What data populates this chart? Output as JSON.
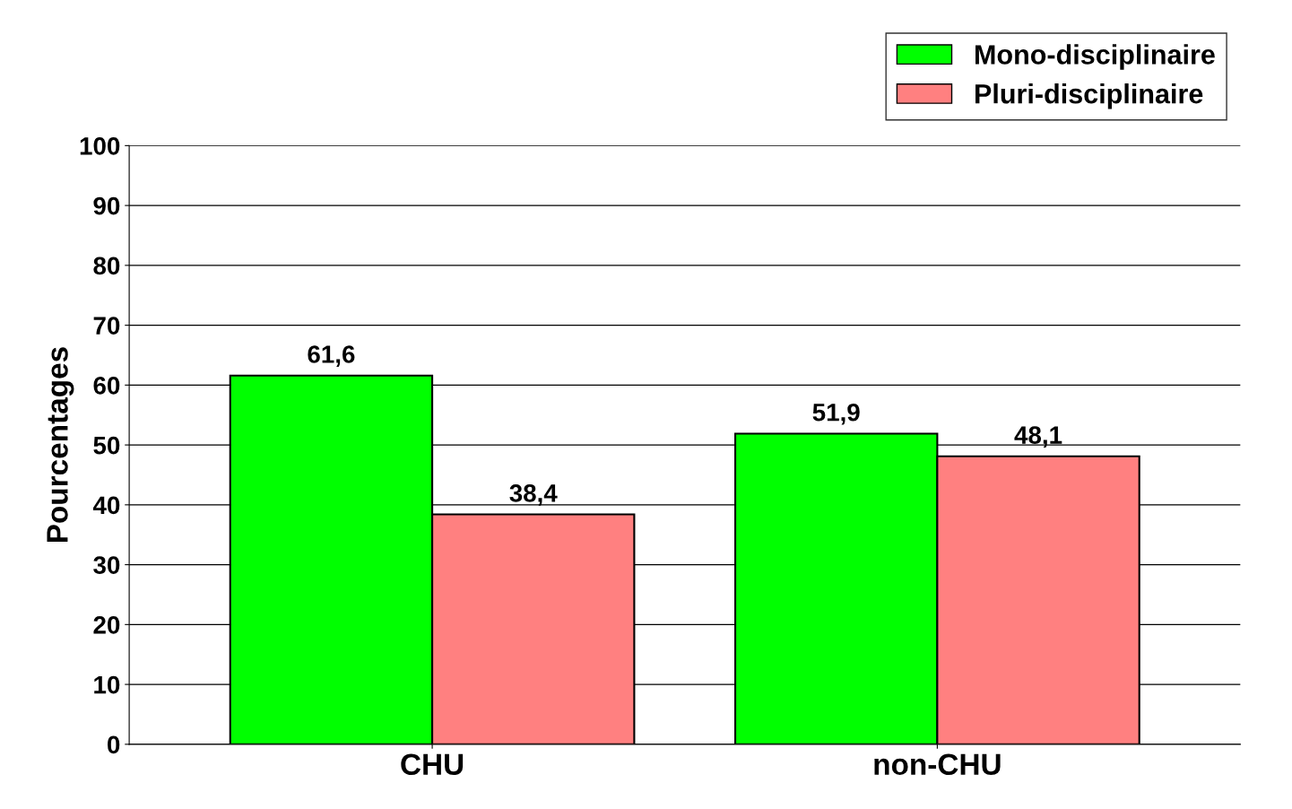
{
  "chart_data": {
    "type": "bar",
    "ylabel": "Pourcentages",
    "categories": [
      "CHU",
      "non-CHU"
    ],
    "series": [
      {
        "name": "Mono-disciplinaire",
        "color": "#00ff00",
        "values": [
          61.6,
          51.9
        ],
        "value_labels": [
          "61,6",
          "51,9"
        ]
      },
      {
        "name": "Pluri-disciplinaire",
        "color": "#ff8080",
        "values": [
          38.4,
          48.1
        ],
        "value_labels": [
          "38,4",
          "48,1"
        ]
      }
    ],
    "ylim": [
      0,
      100
    ],
    "yticks": [
      0,
      10,
      20,
      30,
      40,
      50,
      60,
      70,
      80,
      90,
      100
    ],
    "grid": "y",
    "legend": "top right"
  }
}
